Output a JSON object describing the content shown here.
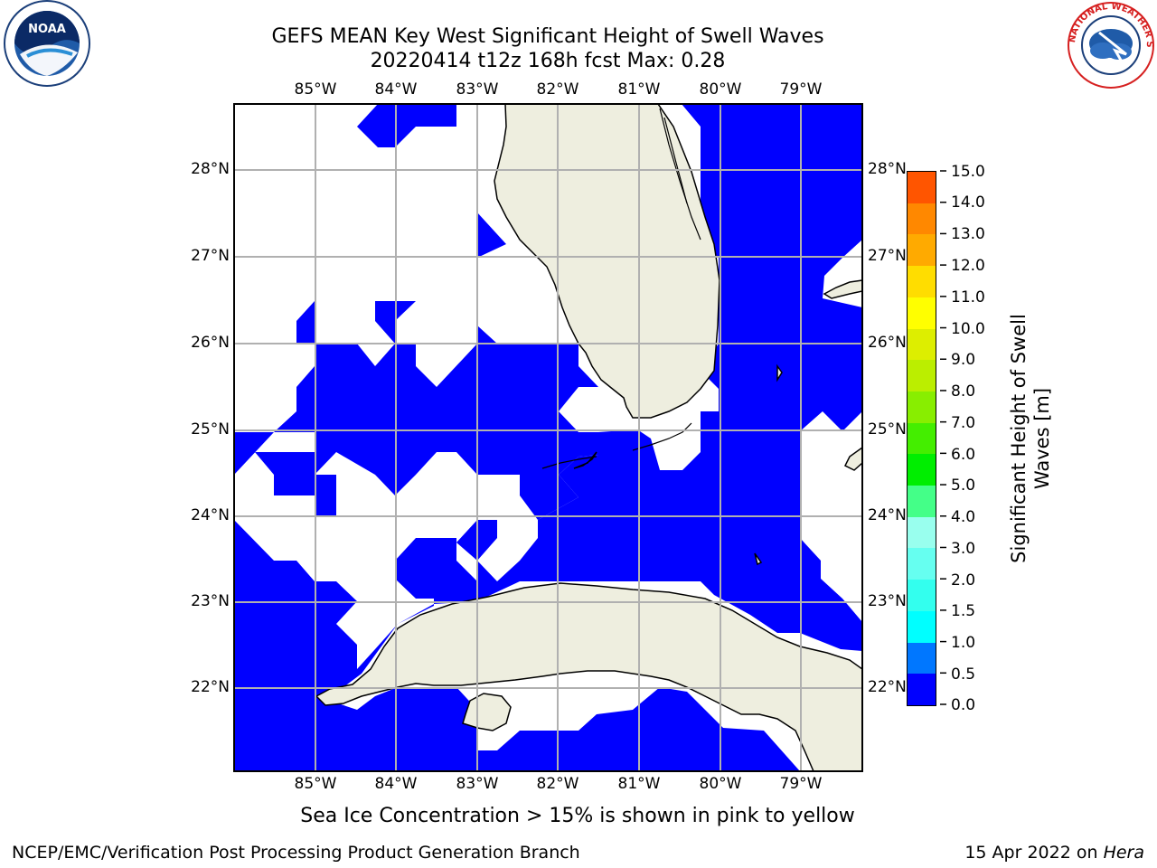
{
  "header": {
    "title_line1": "GEFS MEAN Key West Significant Height of Swell Waves",
    "title_line2": "20220414 t12z 168h fcst   Max: 0.28"
  },
  "logos": {
    "noaa_text": "NOAA",
    "noaa_ring_text": "NATIONAL OCEANIC AND ATMOSPHERIC ADMINISTRATION · U.S. DEPARTMENT OF COMMERCE",
    "nws_text": "NATIONAL WEATHER SERVICE"
  },
  "map": {
    "lon_labels": [
      "85°W",
      "84°W",
      "83°W",
      "82°W",
      "81°W",
      "80°W",
      "79°W"
    ],
    "lat_labels": [
      "28°N",
      "27°N",
      "26°N",
      "25°N",
      "24°N",
      "23°N",
      "22°N"
    ],
    "colors": {
      "swell_low": "#0000ff",
      "land": "#eeeedf",
      "grid": "#b0b0b0"
    }
  },
  "colorbar": {
    "label_line1": "Significant Height of Swell",
    "label_line2": "Waves [m]",
    "ticks": [
      "0.0",
      "0.5",
      "1.0",
      "1.5",
      "2.0",
      "3.0",
      "4.0",
      "5.0",
      "6.0",
      "7.0",
      "8.0",
      "9.0",
      "10.0",
      "11.0",
      "12.0",
      "13.0",
      "14.0",
      "15.0"
    ],
    "colors": [
      "#0000ff",
      "#0077ff",
      "#00ffff",
      "#33ffee",
      "#66fff0",
      "#99ffee",
      "#44ff88",
      "#00ee00",
      "#44ee00",
      "#88ee00",
      "#bbee00",
      "#ddee00",
      "#ffff00",
      "#ffdd00",
      "#ffaa00",
      "#ff8800",
      "#ff5500",
      "#ff2200",
      "#ff0000"
    ]
  },
  "notes": {
    "sea_ice": "Sea Ice Concentration > 15% is shown in pink to yellow"
  },
  "footer": {
    "left": "NCEP/EMC/Verification Post Processing Product Generation Branch",
    "right_date": "15 Apr 2022 on ",
    "right_machine": "Hera"
  }
}
